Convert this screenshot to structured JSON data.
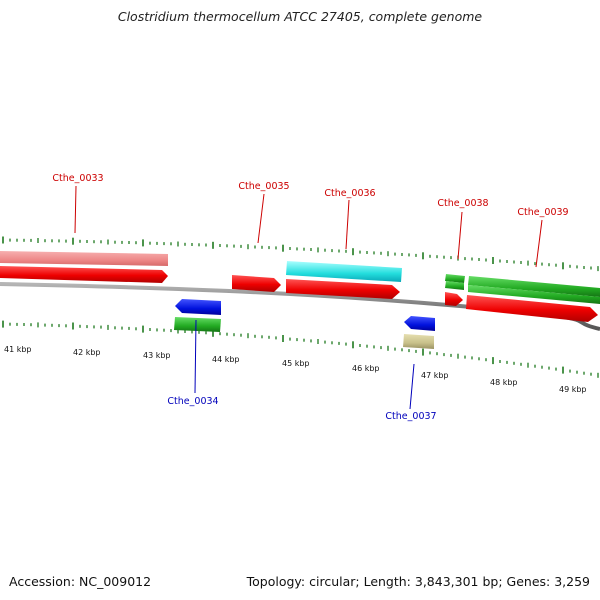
{
  "title": "Clostridium thermocellum ATCC 27405, complete genome",
  "footer": {
    "accession": "Accession: NC_009012",
    "summary": "Topology: circular; Length: 3,843,301 bp; Genes: 3,259"
  },
  "colors": {
    "forward_label": "#cc0000",
    "reverse_label": "#0000bb",
    "tick": "#1e7a1e",
    "backbone": "#7a7a7a"
  },
  "scale_labels": [
    "41 kbp",
    "42 kbp",
    "43 kbp",
    "44 kbp",
    "45 kbp",
    "46 kbp",
    "47 kbp",
    "48 kbp",
    "49 kbp"
  ],
  "gene_labels": [
    {
      "text": "Cthe_0033",
      "strand": "forward"
    },
    {
      "text": "Cthe_0034",
      "strand": "reverse"
    },
    {
      "text": "Cthe_0035",
      "strand": "forward"
    },
    {
      "text": "Cthe_0036",
      "strand": "forward"
    },
    {
      "text": "Cthe_0037",
      "strand": "reverse"
    },
    {
      "text": "Cthe_0038",
      "strand": "forward"
    },
    {
      "text": "Cthe_0039",
      "strand": "forward"
    }
  ]
}
